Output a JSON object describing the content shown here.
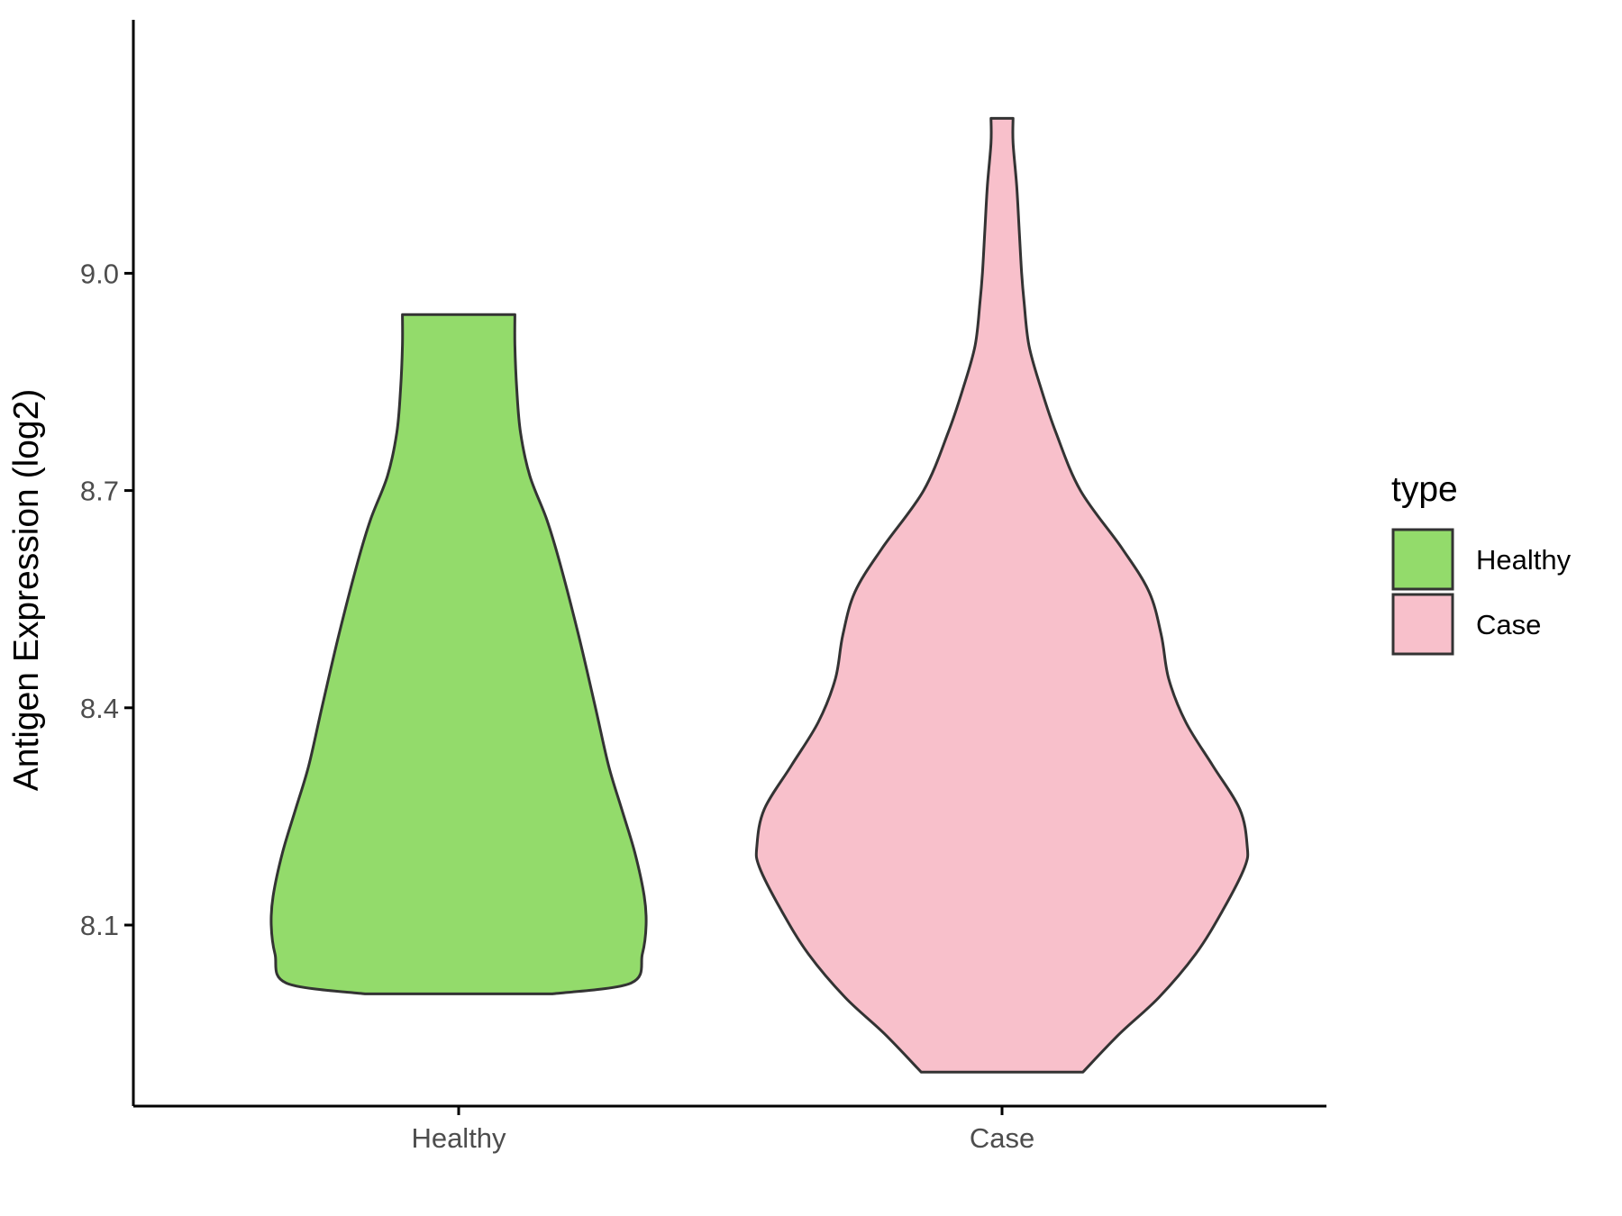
{
  "chart_data": {
    "type": "violin",
    "title": "",
    "xlabel": "",
    "ylabel": "Antigen Expression (log2)",
    "ylim": [
      7.85,
      9.35
    ],
    "yticks": [
      "8.1",
      "8.4",
      "8.7",
      "9.0"
    ],
    "categories": [
      "Healthy",
      "Case"
    ],
    "grid": false,
    "legend": {
      "title": "type",
      "position": "right",
      "entries": [
        "Healthy",
        "Case"
      ]
    },
    "series": [
      {
        "name": "Healthy",
        "color": "#93DB6B",
        "min": 8.005,
        "max": 8.943,
        "profile": [
          [
            8.005,
            0.5
          ],
          [
            8.02,
            0.92
          ],
          [
            8.06,
            0.98
          ],
          [
            8.1,
            1.0
          ],
          [
            8.14,
            0.99
          ],
          [
            8.2,
            0.94
          ],
          [
            8.26,
            0.87
          ],
          [
            8.32,
            0.8
          ],
          [
            8.4,
            0.73
          ],
          [
            8.5,
            0.64
          ],
          [
            8.6,
            0.54
          ],
          [
            8.66,
            0.47
          ],
          [
            8.72,
            0.38
          ],
          [
            8.78,
            0.33
          ],
          [
            8.84,
            0.31
          ],
          [
            8.9,
            0.3
          ],
          [
            8.943,
            0.3
          ]
        ]
      },
      {
        "name": "Case",
        "color": "#F8C0CB",
        "min": 7.897,
        "max": 9.214,
        "profile": [
          [
            7.897,
            0.33
          ],
          [
            7.95,
            0.48
          ],
          [
            8.0,
            0.64
          ],
          [
            8.06,
            0.79
          ],
          [
            8.12,
            0.9
          ],
          [
            8.18,
            0.99
          ],
          [
            8.21,
            1.0
          ],
          [
            8.26,
            0.97
          ],
          [
            8.32,
            0.86
          ],
          [
            8.38,
            0.75
          ],
          [
            8.44,
            0.68
          ],
          [
            8.5,
            0.65
          ],
          [
            8.56,
            0.6
          ],
          [
            8.62,
            0.49
          ],
          [
            8.7,
            0.32
          ],
          [
            8.78,
            0.22
          ],
          [
            8.84,
            0.16
          ],
          [
            8.9,
            0.11
          ],
          [
            8.96,
            0.09
          ],
          [
            9.0,
            0.08
          ],
          [
            9.06,
            0.07
          ],
          [
            9.12,
            0.06
          ],
          [
            9.18,
            0.045
          ],
          [
            9.214,
            0.045
          ]
        ]
      }
    ]
  },
  "colors": {
    "outline": "#333333",
    "axis": "#000000",
    "tick_text": "#4d4d4d"
  }
}
